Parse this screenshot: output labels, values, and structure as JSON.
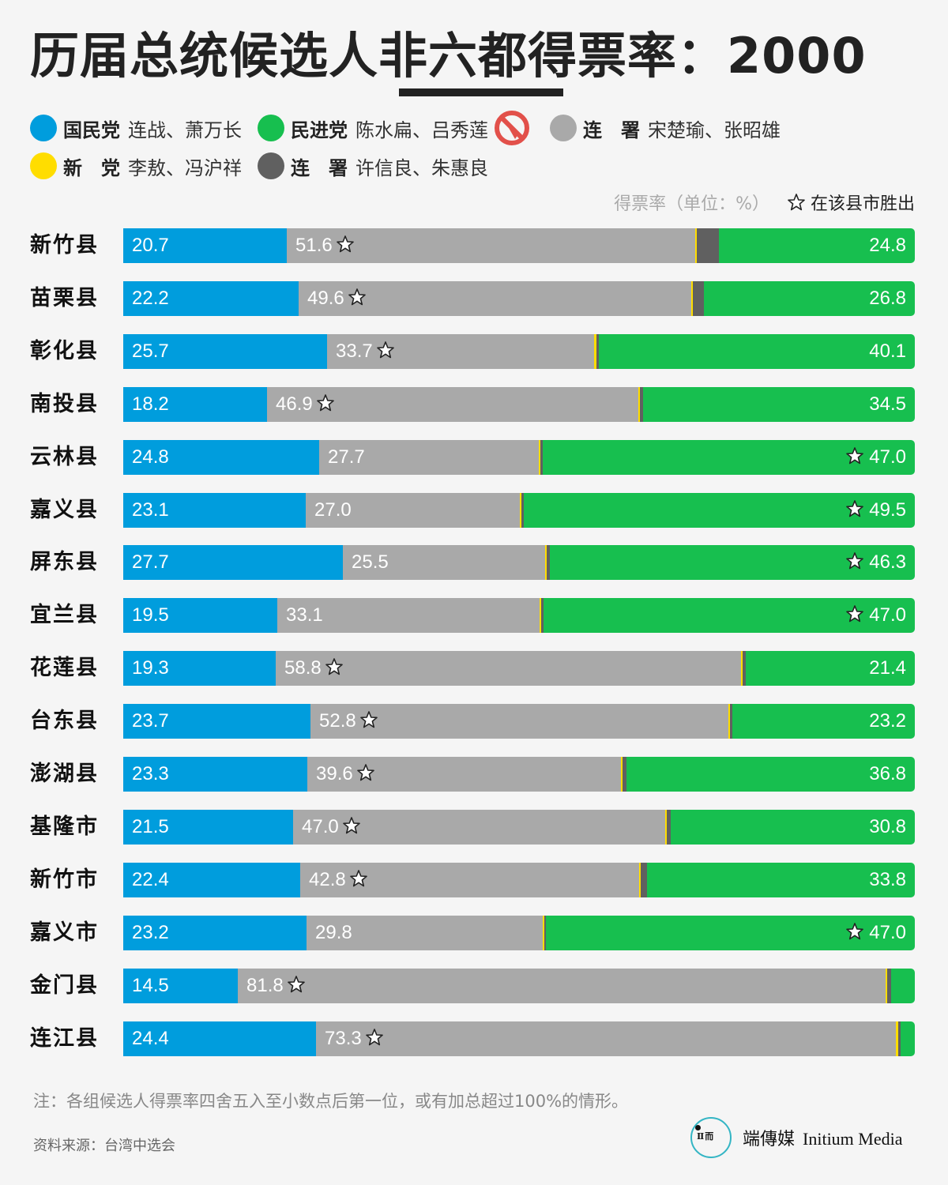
{
  "header": {
    "title_pre": "历届总统候选人",
    "title_emph": "非六都",
    "title_post": "得票率：2000"
  },
  "legend": {
    "items": [
      {
        "party": "国民党",
        "candidates": "连战、萧万长",
        "color": "#009ddd"
      },
      {
        "party": "民进党",
        "candidates": "陈水扁、吕秀莲",
        "color": "#17bf4f",
        "winner": true
      },
      {
        "party": "连　署",
        "candidates": "宋楚瑜、张昭雄",
        "color": "#a9a9a9"
      },
      {
        "party": "新　党",
        "candidates": "李敖、冯沪祥",
        "color": "#ffdd00"
      },
      {
        "party": "连　署",
        "candidates": "许信良、朱惠良",
        "color": "#606060"
      }
    ],
    "winner_icon": "election-winner-icon",
    "winner_icon_color": "#e2504a"
  },
  "unit_label": "得票率（单位：%）",
  "star_legend": "在该县市胜出",
  "colors": {
    "kmt": "#009ddd",
    "dpp": "#17bf4f",
    "soong": "#a9a9a9",
    "new_party": "#ffdd00",
    "hsu": "#606060",
    "background": "#f5f5f5"
  },
  "chart_data": {
    "type": "bar",
    "orientation": "horizontal-stacked-100",
    "title": "历届总统候选人非六都得票率：2000",
    "xlabel": "得票率（单位：%）",
    "ylabel": "",
    "xlim": [
      0,
      100
    ],
    "legend_position": "top",
    "grid": false,
    "categories": [
      "新竹县",
      "苗栗县",
      "彰化县",
      "南投县",
      "云林县",
      "嘉义县",
      "屏东县",
      "宜兰县",
      "花莲县",
      "台东县",
      "澎湖县",
      "基隆市",
      "新竹市",
      "嘉义市",
      "金门县",
      "连江县"
    ],
    "series": [
      {
        "name": "国民党 连战、萧万长",
        "color": "#009ddd",
        "values": [
          20.7,
          22.2,
          25.7,
          18.2,
          24.8,
          23.1,
          27.7,
          19.5,
          19.3,
          23.7,
          23.3,
          21.5,
          22.4,
          23.2,
          14.5,
          24.4
        ]
      },
      {
        "name": "连署 宋楚瑜、张昭雄",
        "color": "#a9a9a9",
        "values": [
          51.6,
          49.6,
          33.7,
          46.9,
          27.7,
          27.0,
          25.5,
          33.1,
          58.8,
          52.8,
          39.6,
          47.0,
          42.8,
          29.8,
          81.8,
          73.3
        ]
      },
      {
        "name": "新党 李敖、冯沪祥",
        "color": "#ffdd00",
        "values": [
          0.2,
          0.2,
          0.3,
          0.1,
          0.2,
          0.2,
          0.1,
          0.2,
          0.2,
          0.2,
          0.1,
          0.2,
          0.2,
          0.2,
          0.1,
          0.3
        ]
      },
      {
        "name": "连署 许信良、朱惠良",
        "color": "#606060",
        "values": [
          2.8,
          1.4,
          0.3,
          0.4,
          0.3,
          0.3,
          0.4,
          0.3,
          0.4,
          0.3,
          0.5,
          0.5,
          0.8,
          0.2,
          0.5,
          0.3
        ]
      },
      {
        "name": "民进党 陈水扁、吕秀莲",
        "color": "#17bf4f",
        "values": [
          24.8,
          26.8,
          40.1,
          34.5,
          47.0,
          49.5,
          46.3,
          47.0,
          21.4,
          23.2,
          36.8,
          30.8,
          33.8,
          47.0,
          3.1,
          1.7
        ]
      }
    ],
    "winners": [
      "连署",
      "连署",
      "连署",
      "连署",
      "民进党",
      "民进党",
      "民进党",
      "民进党",
      "连署",
      "连署",
      "连署",
      "连署",
      "连署",
      "民进党",
      "连署",
      "连署"
    ],
    "annotations": [
      "☆ 在该县市胜出"
    ]
  },
  "rows": [
    {
      "label": "新竹县",
      "kmt": "20.7",
      "soong": "51.6",
      "dpp": "24.8",
      "w": [
        20.7,
        51.6,
        0.2,
        2.8
      ],
      "soong_star": true,
      "dpp_star": false
    },
    {
      "label": "苗栗县",
      "kmt": "22.2",
      "soong": "49.6",
      "dpp": "26.8",
      "w": [
        22.2,
        49.6,
        0.2,
        1.4
      ],
      "soong_star": true,
      "dpp_star": false
    },
    {
      "label": "彰化县",
      "kmt": "25.7",
      "soong": "33.7",
      "dpp": "40.1",
      "w": [
        25.7,
        33.7,
        0.3,
        0.3
      ],
      "soong_star": true,
      "dpp_star": false
    },
    {
      "label": "南投县",
      "kmt": "18.2",
      "soong": "46.9",
      "dpp": "34.5",
      "w": [
        18.2,
        46.9,
        0.1,
        0.4
      ],
      "soong_star": true,
      "dpp_star": false
    },
    {
      "label": "云林县",
      "kmt": "24.8",
      "soong": "27.7",
      "dpp": "47.0",
      "w": [
        24.8,
        27.7,
        0.2,
        0.3
      ],
      "soong_star": false,
      "dpp_star": true
    },
    {
      "label": "嘉义县",
      "kmt": "23.1",
      "soong": "27.0",
      "dpp": "49.5",
      "w": [
        23.1,
        27.0,
        0.2,
        0.3
      ],
      "soong_star": false,
      "dpp_star": true
    },
    {
      "label": "屏东县",
      "kmt": "27.7",
      "soong": "25.5",
      "dpp": "46.3",
      "w": [
        27.7,
        25.5,
        0.1,
        0.4
      ],
      "soong_star": false,
      "dpp_star": true
    },
    {
      "label": "宜兰县",
      "kmt": "19.5",
      "soong": "33.1",
      "dpp": "47.0",
      "w": [
        19.5,
        33.1,
        0.2,
        0.3
      ],
      "soong_star": false,
      "dpp_star": true
    },
    {
      "label": "花莲县",
      "kmt": "19.3",
      "soong": "58.8",
      "dpp": "21.4",
      "w": [
        19.3,
        58.8,
        0.2,
        0.4
      ],
      "soong_star": true,
      "dpp_star": false
    },
    {
      "label": "台东县",
      "kmt": "23.7",
      "soong": "52.8",
      "dpp": "23.2",
      "w": [
        23.7,
        52.8,
        0.2,
        0.3
      ],
      "soong_star": true,
      "dpp_star": false
    },
    {
      "label": "澎湖县",
      "kmt": "23.3",
      "soong": "39.6",
      "dpp": "36.8",
      "w": [
        23.3,
        39.6,
        0.1,
        0.5
      ],
      "soong_star": true,
      "dpp_star": false
    },
    {
      "label": "基隆市",
      "kmt": "21.5",
      "soong": "47.0",
      "dpp": "30.8",
      "w": [
        21.5,
        47.0,
        0.2,
        0.5
      ],
      "soong_star": true,
      "dpp_star": false
    },
    {
      "label": "新竹市",
      "kmt": "22.4",
      "soong": "42.8",
      "dpp": "33.8",
      "w": [
        22.4,
        42.8,
        0.2,
        0.8
      ],
      "soong_star": true,
      "dpp_star": false
    },
    {
      "label": "嘉义市",
      "kmt": "23.2",
      "soong": "29.8",
      "dpp": "47.0",
      "w": [
        23.2,
        29.8,
        0.2,
        0.2
      ],
      "soong_star": false,
      "dpp_star": true
    },
    {
      "label": "金门县",
      "kmt": "14.5",
      "soong": "81.8",
      "dpp": "",
      "w": [
        14.5,
        81.8,
        0.1,
        0.5
      ],
      "soong_star": true,
      "dpp_star": false
    },
    {
      "label": "连江县",
      "kmt": "24.4",
      "soong": "73.3",
      "dpp": "",
      "w": [
        24.4,
        73.3,
        0.3,
        0.3
      ],
      "soong_star": true,
      "dpp_star": false
    }
  ],
  "footer": {
    "note": "注：各组候选人得票率四舍五入至小数点后第一位，或有加总超过100%的情形。",
    "source": "资料来源：台湾中选会",
    "logo_glyph": "ㄩ\nⅡ而",
    "logo_cn": "端傳媒",
    "logo_en": "Initium Media"
  }
}
